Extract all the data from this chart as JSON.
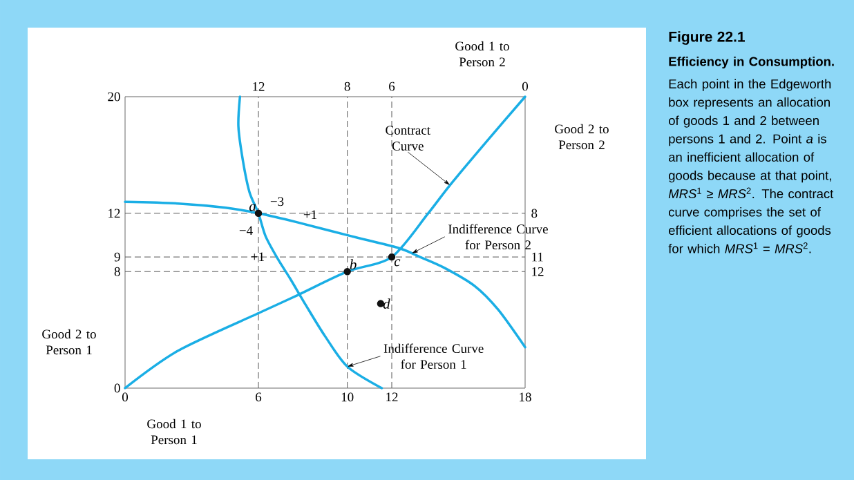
{
  "chart_data": {
    "type": "line",
    "title": "Figure 22.1",
    "subtitle": "Efficiency in Consumption.",
    "xlabel": "Good 1 to Person 1",
    "ylabel": "Good 2 to Person 1",
    "x2label": "Good 1 to Person 2",
    "y2label": "Good 2 to Person 2",
    "xlim": [
      0,
      18
    ],
    "xticks": [
      0,
      6,
      10,
      12,
      18
    ],
    "ylim": [
      0,
      20
    ],
    "yticks": [
      0,
      8,
      9,
      12,
      20
    ],
    "x2lim": [
      18,
      0
    ],
    "x2ticks": [
      12,
      8,
      6,
      0
    ],
    "y2lim": [
      20,
      0
    ],
    "y2ticks": [
      8,
      11,
      12
    ],
    "series": [
      {
        "color": "#1aaee5",
        "x": [
          5.17,
          5.1,
          5.31,
          5.6,
          6,
          6.32,
          6.86,
          7.43,
          8.14,
          9.0,
          10.0,
          11.55
        ],
        "values": [
          20,
          17.94,
          15.54,
          13.44,
          12,
          10.43,
          8.9,
          7.51,
          5.68,
          3.56,
          1.48,
          0
        ]
      },
      {
        "color": "#1aaee5",
        "x": [
          0,
          2.39,
          4.53,
          6,
          7.75,
          10.17,
          12.3,
          13.27,
          14.4,
          15.73,
          16.79,
          18
        ],
        "values": [
          12.78,
          12.67,
          12.38,
          12,
          11.38,
          10.43,
          9.62,
          9,
          8.23,
          7.01,
          5.38,
          2.81
        ]
      },
      {
        "color": "#1aaee5",
        "x": [
          0,
          2.39,
          6,
          7.75,
          10,
          12,
          13.62,
          14.62,
          16.3,
          18
        ],
        "values": [
          0,
          2.57,
          5.14,
          6.37,
          8,
          9,
          11.96,
          13.93,
          16.98,
          20
        ]
      },
      {
        "type": "scatter",
        "color": "#111111",
        "x": [
          6,
          10,
          12,
          11.5
        ],
        "values": [
          12,
          8,
          9,
          5.8
        ],
        "value_labels": [
          "*a*",
          "*b*",
          "*c*",
          "*d*"
        ]
      }
    ],
    "ref_lines": [
      {
        "axis": "x",
        "value": 6,
        "color": "#555555",
        "line_style": "dashed"
      },
      {
        "axis": "x",
        "value": 10,
        "color": "#555555",
        "line_style": "dashed"
      },
      {
        "axis": "x",
        "value": 12,
        "color": "#555555",
        "line_style": "dashed"
      },
      {
        "axis": "y",
        "value": 12,
        "color": "#555555",
        "line_style": "dashed"
      },
      {
        "axis": "y",
        "value": 9,
        "color": "#555555",
        "line_style": "dashed"
      },
      {
        "axis": "y",
        "value": 8,
        "color": "#555555",
        "line_style": "dashed"
      }
    ],
    "annotations": [
      "Each point in the Edgeworth box represents an allocation of goods 1 and 2 between persons 1 and 2. Point *a* is an inefficient allocation of goods because at that point, *MRS*$^{1}$ ≥ *MRS*$^{2}$. The contract curve comprises the set of efficient allocations of goods for which *MRS*$^{1}$ = *MRS*$^{2}$.",
      {
        "text": "Contract Curve",
        "x": 14.62,
        "y": 13.93
      },
      {
        "text": "Indifference Curve for Person 2",
        "x": 12.9,
        "y": 9.25
      },
      {
        "text": "Indifference Curve for Person 1",
        "x": 10.0,
        "y": 1.48
      },
      "−3",
      "+1",
      "−4",
      "+1"
    ]
  }
}
